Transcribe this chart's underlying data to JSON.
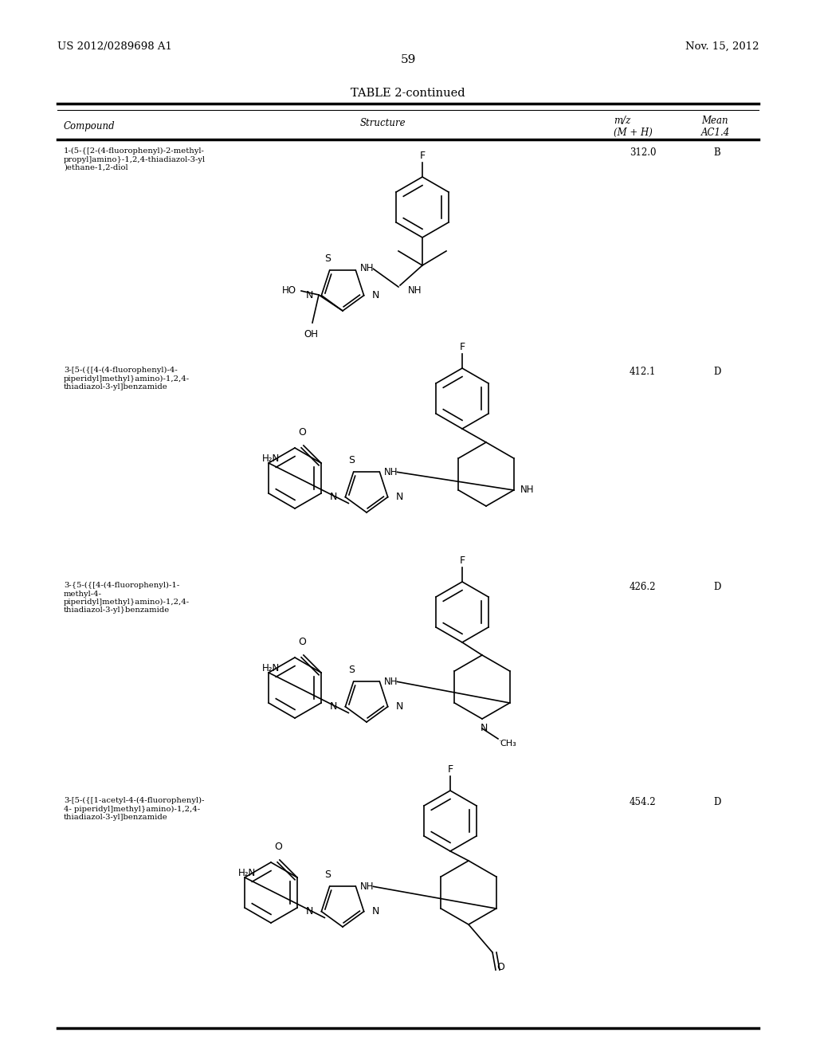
{
  "page_number": "59",
  "patent_number": "US 2012/0289698 A1",
  "patent_date": "Nov. 15, 2012",
  "table_title": "TABLE 2-continued",
  "background_color": "#ffffff",
  "text_color": "#000000",
  "rows": [
    {
      "compound": "1-(5-{[2-(4-fluorophenyl)-2-methyl-\npropyl]amino}-1,2,4-thiadiazol-3-yl\n)ethane-1,2-diol",
      "mz": "312.0",
      "ac": "B"
    },
    {
      "compound": "3-[5-({[4-(4-fluorophenyl)-4-\npiperidyl]methyl}amino)-1,2,4-\nthiadiazol-3-yl]benzamide",
      "mz": "412.1",
      "ac": "D"
    },
    {
      "compound": "3-{5-({[4-(4-fluorophenyl)-1-\nmethyl-4-\npiperidyl]methyl}amino)-1,2,4-\nthiadiazol-3-yl}benzamide",
      "mz": "426.2",
      "ac": "D"
    },
    {
      "compound": "3-[5-({[1-acetyl-4-(4-fluorophenyl)-\n4- piperidyl]methyl}amino)-1,2,4-\nthiadiazol-3-yl]benzamide",
      "mz": "454.2",
      "ac": "D"
    }
  ]
}
